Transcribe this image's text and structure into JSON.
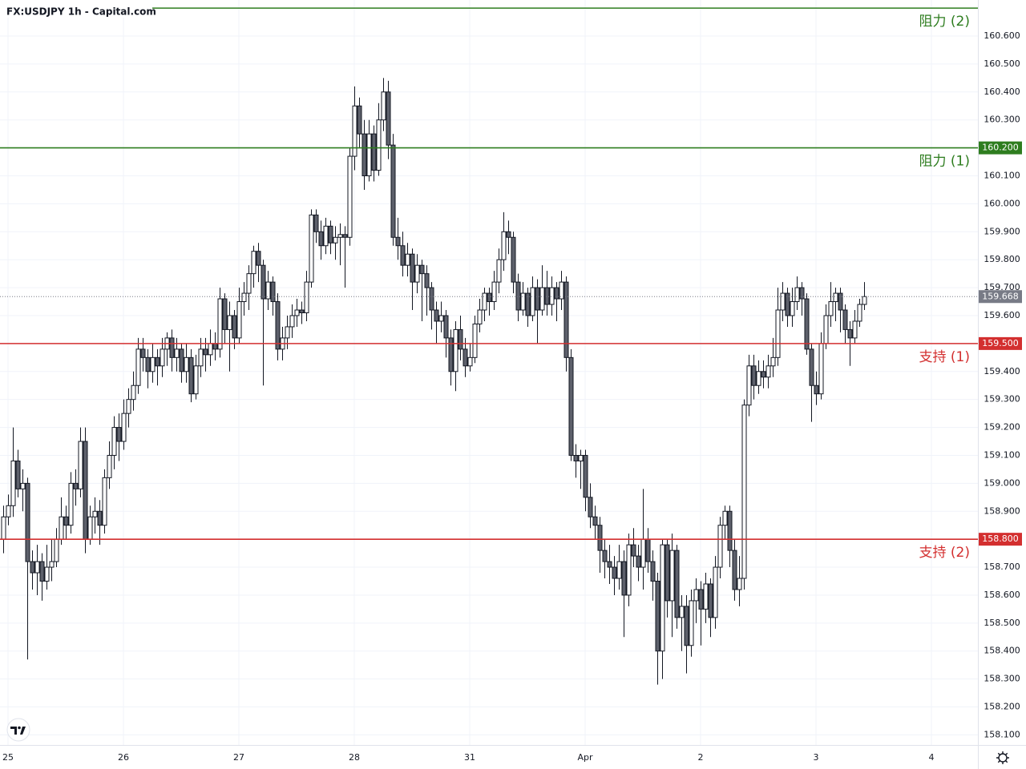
{
  "chart_data": {
    "type": "candlestick",
    "title": "FX:USDJPY 1h - Capital.com",
    "ylim": [
      158.064,
      160.729
    ],
    "yticks": [
      {
        "value": 158.1,
        "label": "158.100"
      },
      {
        "value": 158.2,
        "label": "158.200"
      },
      {
        "value": 158.3,
        "label": "158.300"
      },
      {
        "value": 158.4,
        "label": "158.400"
      },
      {
        "value": 158.5,
        "label": "158.500"
      },
      {
        "value": 158.6,
        "label": "158.600"
      },
      {
        "value": 158.7,
        "label": "158.700"
      },
      {
        "value": 158.8,
        "label": "158.800"
      },
      {
        "value": 158.9,
        "label": "158.900"
      },
      {
        "value": 159.0,
        "label": "159.000"
      },
      {
        "value": 159.1,
        "label": "159.100"
      },
      {
        "value": 159.2,
        "label": "159.200"
      },
      {
        "value": 159.3,
        "label": "159.300"
      },
      {
        "value": 159.4,
        "label": "159.400"
      },
      {
        "value": 159.5,
        "label": "159.500"
      },
      {
        "value": 159.6,
        "label": "159.600"
      },
      {
        "value": 159.7,
        "label": "159.700"
      },
      {
        "value": 159.8,
        "label": "159.800"
      },
      {
        "value": 159.9,
        "label": "159.900"
      },
      {
        "value": 160.0,
        "label": "160.000"
      },
      {
        "value": 160.1,
        "label": "160.100"
      },
      {
        "value": 160.2,
        "label": "160.200"
      },
      {
        "value": 160.3,
        "label": "160.300"
      },
      {
        "value": 160.4,
        "label": "160.400"
      },
      {
        "value": 160.5,
        "label": "160.500"
      },
      {
        "value": 160.6,
        "label": "160.600"
      }
    ],
    "xlim": [
      -0.67,
      202.67
    ],
    "xticks": [
      {
        "value": 1,
        "label": "25"
      },
      {
        "value": 25,
        "label": "26"
      },
      {
        "value": 49,
        "label": "27"
      },
      {
        "value": 73,
        "label": "28"
      },
      {
        "value": 97,
        "label": "31"
      },
      {
        "value": 121,
        "label": "Apr"
      },
      {
        "value": 145,
        "label": "2"
      },
      {
        "value": 169,
        "label": "3"
      },
      {
        "value": 193,
        "label": "4"
      }
    ],
    "grid": true,
    "up_color": "#ffffff",
    "down_color": "#5d606b",
    "wick_color": "#131722",
    "levels": [
      {
        "name": "阻力 (2)",
        "value": 160.7,
        "color": "#2e7d1f"
      },
      {
        "name": "阻力 (1)",
        "value": 160.2,
        "label": "160.200",
        "color": "#2e7d1f"
      },
      {
        "name": "支持 (1)",
        "value": 159.5,
        "label": "159.500",
        "color": "#d32f2f"
      },
      {
        "name": "支持 (2)",
        "value": 158.8,
        "label": "158.800",
        "color": "#d32f2f"
      }
    ],
    "candles": [
      [
        158.8,
        158.92,
        158.75,
        158.88
      ],
      [
        158.88,
        158.96,
        158.85,
        158.92
      ],
      [
        158.92,
        159.2,
        158.88,
        159.08
      ],
      [
        159.08,
        159.12,
        158.95,
        158.98
      ],
      [
        158.98,
        159.05,
        158.9,
        159.0
      ],
      [
        159.0,
        159.02,
        158.37,
        158.72
      ],
      [
        158.72,
        158.76,
        158.62,
        158.68
      ],
      [
        158.68,
        158.78,
        158.6,
        158.72
      ],
      [
        158.72,
        158.75,
        158.58,
        158.65
      ],
      [
        158.65,
        158.78,
        158.62,
        158.7
      ],
      [
        158.7,
        158.8,
        158.65,
        158.72
      ],
      [
        158.72,
        158.84,
        158.7,
        158.8
      ],
      [
        158.8,
        158.95,
        158.78,
        158.88
      ],
      [
        158.88,
        158.92,
        158.8,
        158.85
      ],
      [
        158.85,
        159.04,
        158.82,
        159.0
      ],
      [
        159.0,
        159.05,
        158.92,
        158.98
      ],
      [
        158.98,
        159.2,
        158.95,
        159.15
      ],
      [
        159.15,
        159.2,
        158.75,
        158.8
      ],
      [
        158.8,
        158.92,
        158.78,
        158.88
      ],
      [
        158.88,
        158.95,
        158.82,
        158.9
      ],
      [
        158.9,
        158.94,
        158.78,
        158.85
      ],
      [
        158.85,
        159.05,
        158.82,
        159.02
      ],
      [
        159.02,
        159.15,
        158.98,
        159.1
      ],
      [
        159.1,
        159.24,
        159.05,
        159.2
      ],
      [
        159.2,
        159.25,
        159.08,
        159.15
      ],
      [
        159.15,
        159.3,
        159.12,
        159.25
      ],
      [
        159.25,
        159.34,
        159.2,
        159.3
      ],
      [
        159.3,
        159.4,
        159.26,
        159.35
      ],
      [
        159.35,
        159.52,
        159.32,
        159.48
      ],
      [
        159.48,
        159.52,
        159.4,
        159.45
      ],
      [
        159.45,
        159.48,
        159.34,
        159.4
      ],
      [
        159.4,
        159.5,
        159.36,
        159.45
      ],
      [
        159.45,
        159.48,
        159.35,
        159.42
      ],
      [
        159.42,
        159.52,
        159.38,
        159.48
      ],
      [
        159.48,
        159.54,
        159.42,
        159.52
      ],
      [
        159.52,
        159.55,
        159.4,
        159.45
      ],
      [
        159.45,
        159.52,
        159.4,
        159.48
      ],
      [
        159.48,
        159.5,
        159.36,
        159.4
      ],
      [
        159.4,
        159.5,
        159.36,
        159.45
      ],
      [
        159.45,
        159.48,
        159.29,
        159.32
      ],
      [
        159.32,
        159.46,
        159.3,
        159.42
      ],
      [
        159.42,
        159.52,
        159.38,
        159.48
      ],
      [
        159.48,
        159.52,
        159.4,
        159.46
      ],
      [
        159.46,
        159.55,
        159.42,
        159.5
      ],
      [
        159.5,
        159.54,
        159.44,
        159.48
      ],
      [
        159.48,
        159.7,
        159.45,
        159.66
      ],
      [
        159.66,
        159.68,
        159.5,
        159.55
      ],
      [
        159.55,
        159.65,
        159.4,
        159.6
      ],
      [
        159.6,
        159.62,
        159.48,
        159.52
      ],
      [
        159.52,
        159.7,
        159.5,
        159.65
      ],
      [
        159.65,
        159.72,
        159.6,
        159.68
      ],
      [
        159.68,
        159.78,
        159.62,
        159.75
      ],
      [
        159.75,
        159.85,
        159.7,
        159.83
      ],
      [
        159.83,
        159.86,
        159.72,
        159.78
      ],
      [
        159.78,
        159.8,
        159.35,
        159.66
      ],
      [
        159.66,
        159.76,
        159.62,
        159.72
      ],
      [
        159.72,
        159.74,
        159.6,
        159.65
      ],
      [
        159.65,
        159.68,
        159.44,
        159.48
      ],
      [
        159.48,
        159.56,
        159.44,
        159.52
      ],
      [
        159.52,
        159.6,
        159.48,
        159.56
      ],
      [
        159.56,
        159.64,
        159.52,
        159.6
      ],
      [
        159.6,
        159.66,
        159.56,
        159.62
      ],
      [
        159.62,
        159.65,
        159.57,
        159.61
      ],
      [
        159.61,
        159.76,
        159.58,
        159.72
      ],
      [
        159.72,
        159.98,
        159.7,
        159.96
      ],
      [
        159.96,
        159.98,
        159.86,
        159.9
      ],
      [
        159.9,
        159.94,
        159.8,
        159.85
      ],
      [
        159.85,
        159.95,
        159.82,
        159.92
      ],
      [
        159.92,
        159.94,
        159.82,
        159.86
      ],
      [
        159.86,
        159.92,
        159.8,
        159.88
      ],
      [
        159.88,
        159.93,
        159.78,
        159.89
      ],
      [
        159.89,
        159.92,
        159.7,
        159.88
      ],
      [
        159.88,
        160.2,
        159.85,
        160.17
      ],
      [
        160.17,
        160.42,
        160.12,
        160.35
      ],
      [
        160.35,
        160.38,
        160.2,
        160.25
      ],
      [
        160.25,
        160.3,
        160.05,
        160.1
      ],
      [
        160.1,
        160.3,
        160.08,
        160.25
      ],
      [
        160.25,
        160.28,
        160.08,
        160.12
      ],
      [
        160.12,
        160.36,
        160.1,
        160.3
      ],
      [
        160.3,
        160.45,
        160.26,
        160.4
      ],
      [
        160.4,
        160.44,
        160.16,
        160.21
      ],
      [
        160.21,
        160.25,
        159.85,
        159.88
      ],
      [
        159.88,
        159.95,
        159.8,
        159.85
      ],
      [
        159.85,
        159.9,
        159.74,
        159.78
      ],
      [
        159.78,
        159.86,
        159.74,
        159.82
      ],
      [
        159.82,
        159.84,
        159.62,
        159.72
      ],
      [
        159.72,
        159.82,
        159.68,
        159.78
      ],
      [
        159.78,
        159.8,
        159.58,
        159.75
      ],
      [
        159.75,
        159.78,
        159.6,
        159.7
      ],
      [
        159.7,
        159.72,
        159.55,
        159.62
      ],
      [
        159.62,
        159.65,
        159.5,
        159.58
      ],
      [
        159.58,
        159.65,
        159.54,
        159.6
      ],
      [
        159.6,
        159.62,
        159.45,
        159.52
      ],
      [
        159.52,
        159.55,
        159.35,
        159.4
      ],
      [
        159.4,
        159.58,
        159.33,
        159.55
      ],
      [
        159.55,
        159.6,
        159.44,
        159.48
      ],
      [
        159.48,
        159.52,
        159.38,
        159.42
      ],
      [
        159.42,
        159.5,
        159.4,
        159.45
      ],
      [
        159.45,
        159.6,
        159.43,
        159.57
      ],
      [
        159.57,
        159.66,
        159.54,
        159.62
      ],
      [
        159.62,
        159.7,
        159.58,
        159.68
      ],
      [
        159.68,
        159.7,
        159.6,
        159.65
      ],
      [
        159.65,
        159.76,
        159.62,
        159.72
      ],
      [
        159.72,
        159.84,
        159.68,
        159.8
      ],
      [
        159.8,
        159.97,
        159.76,
        159.9
      ],
      [
        159.9,
        159.94,
        159.82,
        159.88
      ],
      [
        159.88,
        159.9,
        159.68,
        159.72
      ],
      [
        159.72,
        159.75,
        159.58,
        159.62
      ],
      [
        159.62,
        159.72,
        159.6,
        159.68
      ],
      [
        159.68,
        159.7,
        159.56,
        159.6
      ],
      [
        159.6,
        159.74,
        159.58,
        159.7
      ],
      [
        159.7,
        159.73,
        159.5,
        159.62
      ],
      [
        159.62,
        159.78,
        159.6,
        159.7
      ],
      [
        159.7,
        159.76,
        159.6,
        159.64
      ],
      [
        159.64,
        159.74,
        159.6,
        159.7
      ],
      [
        159.7,
        159.72,
        159.58,
        159.66
      ],
      [
        159.66,
        159.76,
        159.62,
        159.72
      ],
      [
        159.72,
        159.74,
        159.4,
        159.45
      ],
      [
        159.45,
        159.48,
        159.08,
        159.1
      ],
      [
        159.1,
        159.14,
        159.02,
        159.08
      ],
      [
        159.08,
        159.12,
        158.98,
        159.1
      ],
      [
        159.1,
        159.12,
        158.9,
        158.95
      ],
      [
        158.95,
        159.0,
        158.84,
        158.88
      ],
      [
        158.88,
        158.92,
        158.8,
        158.85
      ],
      [
        158.85,
        158.88,
        158.68,
        158.76
      ],
      [
        158.76,
        158.8,
        158.66,
        158.72
      ],
      [
        158.72,
        158.78,
        158.64,
        158.7
      ],
      [
        158.7,
        158.74,
        158.6,
        158.66
      ],
      [
        158.66,
        158.78,
        158.62,
        158.72
      ],
      [
        158.72,
        158.76,
        158.45,
        158.6
      ],
      [
        158.6,
        158.82,
        158.56,
        158.78
      ],
      [
        158.78,
        158.84,
        158.7,
        158.74
      ],
      [
        158.74,
        158.78,
        158.65,
        158.7
      ],
      [
        158.7,
        158.98,
        158.62,
        158.8
      ],
      [
        158.8,
        158.84,
        158.68,
        158.72
      ],
      [
        158.72,
        158.76,
        158.58,
        158.65
      ],
      [
        158.65,
        158.68,
        158.28,
        158.4
      ],
      [
        158.4,
        158.8,
        158.3,
        158.78
      ],
      [
        158.78,
        158.8,
        158.52,
        158.58
      ],
      [
        158.58,
        158.82,
        158.45,
        158.76
      ],
      [
        158.76,
        158.78,
        158.48,
        158.52
      ],
      [
        158.52,
        158.6,
        158.4,
        158.56
      ],
      [
        158.56,
        158.6,
        158.32,
        158.42
      ],
      [
        158.42,
        158.62,
        158.38,
        158.58
      ],
      [
        158.58,
        158.66,
        158.5,
        158.62
      ],
      [
        158.62,
        158.65,
        158.42,
        158.55
      ],
      [
        158.55,
        158.68,
        158.5,
        158.64
      ],
      [
        158.64,
        158.66,
        158.45,
        158.52
      ],
      [
        158.52,
        158.74,
        158.48,
        158.7
      ],
      [
        158.7,
        158.88,
        158.66,
        158.85
      ],
      [
        158.85,
        158.92,
        158.8,
        158.9
      ],
      [
        158.9,
        158.92,
        158.7,
        158.76
      ],
      [
        158.76,
        158.8,
        158.58,
        158.62
      ],
      [
        158.62,
        158.74,
        158.56,
        158.66
      ],
      [
        158.66,
        159.3,
        158.62,
        159.28
      ],
      [
        159.28,
        159.46,
        159.24,
        159.42
      ],
      [
        159.42,
        159.46,
        159.3,
        159.35
      ],
      [
        159.35,
        159.44,
        159.32,
        159.4
      ],
      [
        159.4,
        159.44,
        159.34,
        159.38
      ],
      [
        159.38,
        159.46,
        159.34,
        159.42
      ],
      [
        159.42,
        159.52,
        159.38,
        159.45
      ],
      [
        159.45,
        159.7,
        159.42,
        159.62
      ],
      [
        159.62,
        159.72,
        159.58,
        159.68
      ],
      [
        159.68,
        159.7,
        159.56,
        159.6
      ],
      [
        159.6,
        159.7,
        159.56,
        159.65
      ],
      [
        159.65,
        159.74,
        159.62,
        159.7
      ],
      [
        159.7,
        159.72,
        159.6,
        159.66
      ],
      [
        159.66,
        159.68,
        159.46,
        159.48
      ],
      [
        159.48,
        159.5,
        159.22,
        159.35
      ],
      [
        159.35,
        159.4,
        159.28,
        159.32
      ],
      [
        159.32,
        159.54,
        159.3,
        159.5
      ],
      [
        159.5,
        159.64,
        159.48,
        159.6
      ],
      [
        159.6,
        159.72,
        159.56,
        159.65
      ],
      [
        159.65,
        159.7,
        159.58,
        159.68
      ],
      [
        159.68,
        159.7,
        159.54,
        159.62
      ],
      [
        159.62,
        159.64,
        159.5,
        159.55
      ],
      [
        159.55,
        159.58,
        159.42,
        159.52
      ],
      [
        159.52,
        159.62,
        159.5,
        159.58
      ],
      [
        159.58,
        159.66,
        159.56,
        159.64
      ],
      [
        159.64,
        159.72,
        159.62,
        159.668
      ]
    ]
  }
}
